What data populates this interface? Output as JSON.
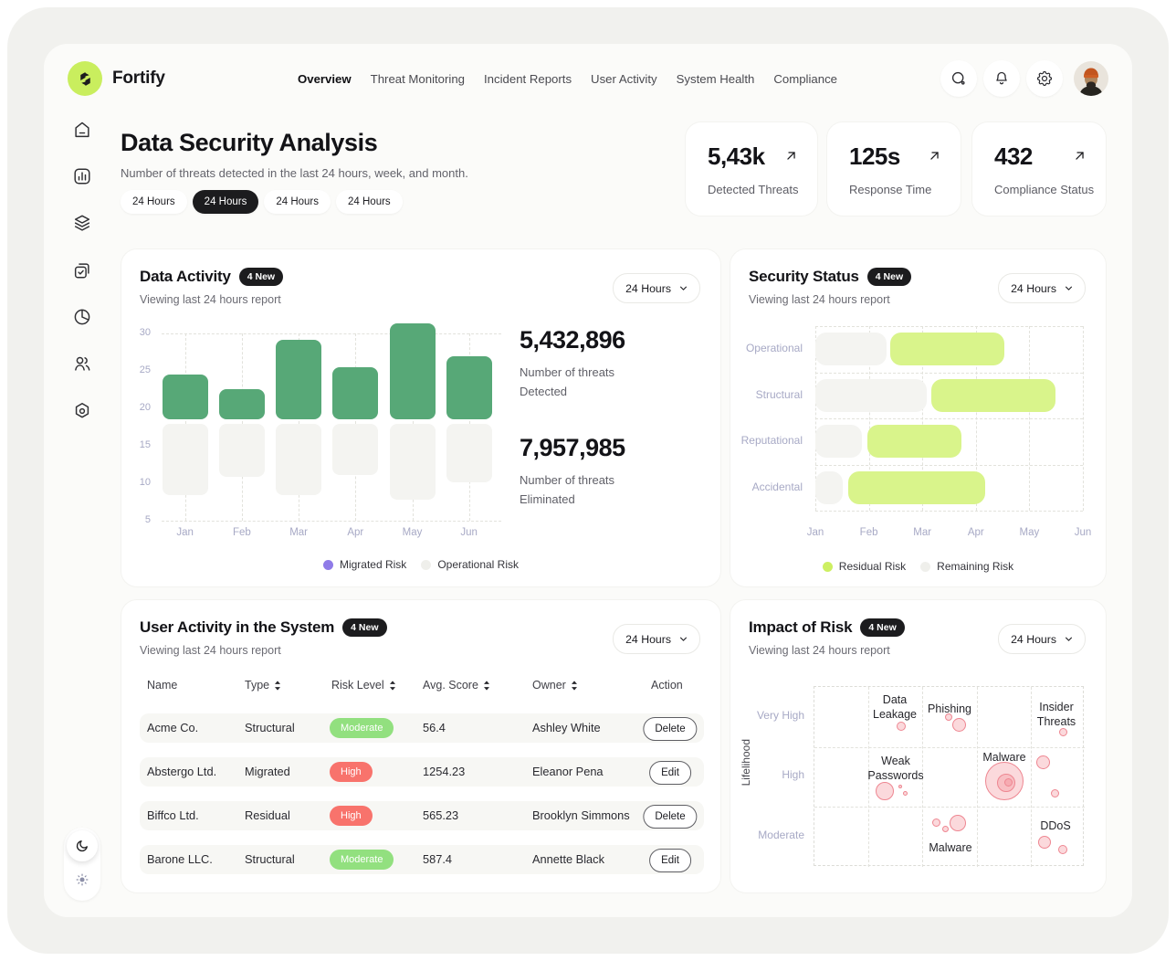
{
  "brand": {
    "name": "Fortify",
    "logo_icon": "fortify-logo",
    "logo_bg": "#C9EE5E"
  },
  "header": {
    "nav": [
      {
        "label": "Overview",
        "active": true
      },
      {
        "label": "Threat Monitoring",
        "active": false
      },
      {
        "label": "Incident Reports",
        "active": false
      },
      {
        "label": "User Activity",
        "active": false
      },
      {
        "label": "System Health",
        "active": false
      },
      {
        "label": "Compliance",
        "active": false
      }
    ],
    "actions": [
      {
        "icon": "search-icon"
      },
      {
        "icon": "bell-icon"
      },
      {
        "icon": "gear-icon"
      }
    ],
    "avatar": "user-avatar"
  },
  "sidebar": {
    "items": [
      "home-icon",
      "bar-chart-icon",
      "layers-icon",
      "tasks-icon",
      "pie-chart-icon",
      "users-icon",
      "hexagon-settings-icon"
    ],
    "theme": [
      "moon-icon",
      "sun-icon"
    ]
  },
  "page": {
    "title": "Data Security Analysis",
    "subtitle": "Number of threats detected in the last 24 hours, week, and month.",
    "filters": [
      {
        "label": "24 Hours",
        "active": false
      },
      {
        "label": "24 Hours",
        "active": true
      },
      {
        "label": "24 Hours",
        "active": false
      },
      {
        "label": "24 Hours",
        "active": false
      }
    ]
  },
  "stats": [
    {
      "value": "5,43k",
      "label": "Detected Threats",
      "icon": "arrow-up-right-icon"
    },
    {
      "value": "125s",
      "label": "Response Time",
      "icon": "arrow-up-right-icon"
    },
    {
      "value": "432",
      "label": "Compliance Status",
      "icon": "arrow-up-right-icon"
    }
  ],
  "cards": {
    "data_activity": {
      "title": "Data Activity",
      "badge": "4 New",
      "subtitle": "Viewing last 24 hours report",
      "range_label": "24 Hours",
      "metrics": [
        {
          "value": "5,432,896",
          "label": "Number of threats Detected"
        },
        {
          "value": "7,957,985",
          "label": "Number of threats Eliminated"
        }
      ]
    },
    "security_status": {
      "title": "Security Status",
      "badge": "4 New",
      "subtitle": "Viewing last 24 hours report",
      "range_label": "24 Hours"
    },
    "user_activity": {
      "title": "User Activity in the System",
      "badge": "4 New",
      "subtitle": "Viewing last 24 hours report",
      "range_label": "24 Hours",
      "table": {
        "columns": [
          {
            "label": "Name",
            "sortable": false
          },
          {
            "label": "Type",
            "sortable": true
          },
          {
            "label": "Risk Level",
            "sortable": true
          },
          {
            "label": "Avg. Score",
            "sortable": true
          },
          {
            "label": "Owner",
            "sortable": true
          },
          {
            "label": "Action",
            "sortable": false
          }
        ],
        "rows": [
          {
            "name": "Acme Co.",
            "type": "Structural",
            "risk_level": "Moderate",
            "risk_color": "#92E07F",
            "score": "56.4",
            "owner": "Ashley White",
            "action": "Delete"
          },
          {
            "name": "Abstergo Ltd.",
            "type": "Migrated",
            "risk_level": "High",
            "risk_color": "#F8736C",
            "score": "1254.23",
            "owner": "Eleanor Pena",
            "action": "Edit"
          },
          {
            "name": "Biffco Ltd.",
            "type": "Residual",
            "risk_level": "High",
            "risk_color": "#F8736C",
            "score": "565.23",
            "owner": "Brooklyn Simmons",
            "action": "Delete"
          },
          {
            "name": "Barone LLC.",
            "type": "Structural",
            "risk_level": "Moderate",
            "risk_color": "#92E07F",
            "score": "587.4",
            "owner": "Annette Black",
            "action": "Edit"
          }
        ]
      }
    },
    "impact_of_risk": {
      "title": "Impact of Risk",
      "badge": "4 New",
      "subtitle": "Viewing last 24 hours report",
      "range_label": "24 Hours"
    }
  },
  "chart_data": [
    {
      "type": "bar",
      "title": "Data Activity",
      "categories": [
        "Jan",
        "Feb",
        "Mar",
        "Apr",
        "May",
        "Jun"
      ],
      "yticks": [
        30,
        25,
        20,
        15,
        10,
        5
      ],
      "ylim": [
        5,
        31.5
      ],
      "grid": "dashed",
      "legend_position": "bottom",
      "series": [
        {
          "name": "Migrated Risk",
          "legend_color": "#8F7BE8",
          "bar_color": "#57A877",
          "ranges": [
            [
              18.5,
              24.5
            ],
            [
              18.5,
              22.6
            ],
            [
              18.5,
              29.2
            ],
            [
              18.5,
              25.5
            ],
            [
              18.5,
              31.3
            ],
            [
              18.5,
              26.9
            ]
          ]
        },
        {
          "name": "Operational Risk",
          "legend_color": "#EFEFEB",
          "bar_color": "#F4F4F1",
          "ranges": [
            [
              8.4,
              18.0
            ],
            [
              10.9,
              18.0
            ],
            [
              8.4,
              18.0
            ],
            [
              11.1,
              18.0
            ],
            [
              7.8,
              18.0
            ],
            [
              10.2,
              18.0
            ]
          ]
        }
      ]
    },
    {
      "type": "gantt",
      "title": "Security Status",
      "rows": [
        "Operational",
        "Structural",
        "Reputational",
        "Accidental"
      ],
      "x_categories": [
        "Jan",
        "Feb",
        "Mar",
        "Apr",
        "May",
        "Jun"
      ],
      "series": [
        {
          "name": "Remaining Risk",
          "color": "#F4F4F1",
          "spans": [
            [
              0,
              1.33
            ],
            [
              0,
              2.08
            ],
            [
              0,
              0.87
            ],
            [
              0,
              0.52
            ]
          ]
        },
        {
          "name": "Residual Risk",
          "color": "#D9F48B",
          "spans": [
            [
              1.4,
              3.53
            ],
            [
              2.17,
              4.49
            ],
            [
              0.98,
              2.73
            ],
            [
              0.62,
              3.18
            ]
          ]
        }
      ],
      "legend": [
        {
          "label": "Residual Risk",
          "color": "#CDEF62"
        },
        {
          "label": "Remaining Risk",
          "color": "#EFEFEB"
        }
      ]
    },
    {
      "type": "bubble",
      "title": "Impact of Risk",
      "ylabel": "Lifelihood",
      "yticks": [
        "Very High",
        "High",
        "Moderate"
      ],
      "grid_cols": 5,
      "grid_rows": 3,
      "bubble_fill": "rgba(242,130,139,0.30)",
      "bubble_stroke": "#EE8691",
      "labels": [
        {
          "text": "Data\nLeakage",
          "x": 88,
          "y": 6
        },
        {
          "text": "Phishing",
          "x": 148,
          "y": 16
        },
        {
          "text": "Insider\nThreats",
          "x": 265,
          "y": 14
        },
        {
          "text": "Weak\nPasswords",
          "x": 89,
          "y": 73
        },
        {
          "text": "Malware",
          "x": 208,
          "y": 69
        },
        {
          "text": "Malware",
          "x": 149,
          "y": 168
        },
        {
          "text": "DDoS",
          "x": 264,
          "y": 144
        }
      ],
      "bubbles": [
        {
          "x": 95,
          "y": 43,
          "r": 5
        },
        {
          "x": 147,
          "y": 33,
          "r": 4
        },
        {
          "x": 158,
          "y": 41,
          "r": 7.5
        },
        {
          "x": 272,
          "y": 49,
          "r": 4.5
        },
        {
          "x": 77,
          "y": 114,
          "r": 10
        },
        {
          "x": 94,
          "y": 109,
          "r": 2
        },
        {
          "x": 99,
          "y": 116,
          "r": 2.5
        },
        {
          "x": 208,
          "y": 103,
          "r": 21
        },
        {
          "x": 210,
          "y": 105,
          "r": 10
        },
        {
          "x": 212,
          "y": 104,
          "r": 4.5
        },
        {
          "x": 250,
          "y": 82,
          "r": 7.5
        },
        {
          "x": 263,
          "y": 116,
          "r": 4.5
        },
        {
          "x": 133,
          "y": 148,
          "r": 4.5
        },
        {
          "x": 143,
          "y": 155,
          "r": 3.5
        },
        {
          "x": 157,
          "y": 149,
          "r": 9
        },
        {
          "x": 252,
          "y": 170,
          "r": 7
        },
        {
          "x": 272,
          "y": 178,
          "r": 5
        }
      ]
    }
  ]
}
